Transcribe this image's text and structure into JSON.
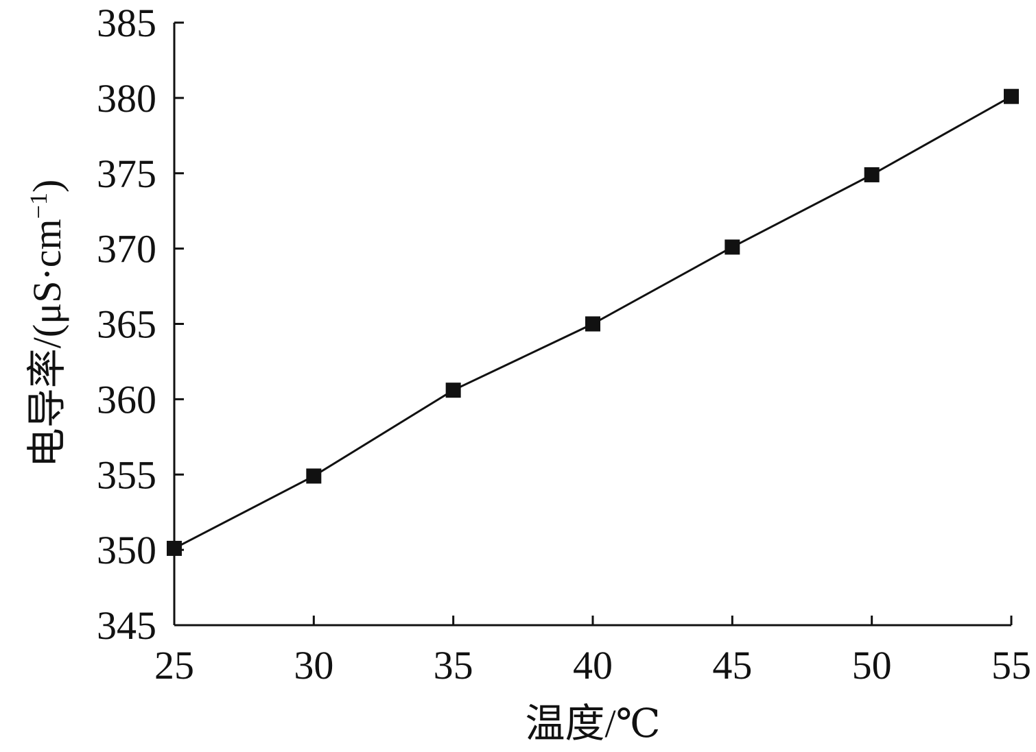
{
  "chart_data": {
    "type": "line",
    "title": "",
    "xlabel": "温度/℃",
    "ylabel_prefix": "电导率/(μS·cm",
    "ylabel_sup": "−1",
    "ylabel_suffix": ")",
    "xlim": [
      25,
      55
    ],
    "ylim": [
      345,
      385
    ],
    "xticks": [
      "25",
      "30",
      "35",
      "40",
      "45",
      "50",
      "55"
    ],
    "yticks": [
      "345",
      "350",
      "355",
      "360",
      "365",
      "370",
      "375",
      "380",
      "385"
    ],
    "grid": false,
    "legend": "none",
    "marker": "square",
    "line_color": "#111111",
    "series": [
      {
        "x": [
          25,
          30,
          35,
          40,
          45,
          50,
          55
        ],
        "values": [
          350.1,
          354.9,
          360.6,
          365.0,
          370.1,
          374.9,
          380.1
        ]
      }
    ]
  }
}
